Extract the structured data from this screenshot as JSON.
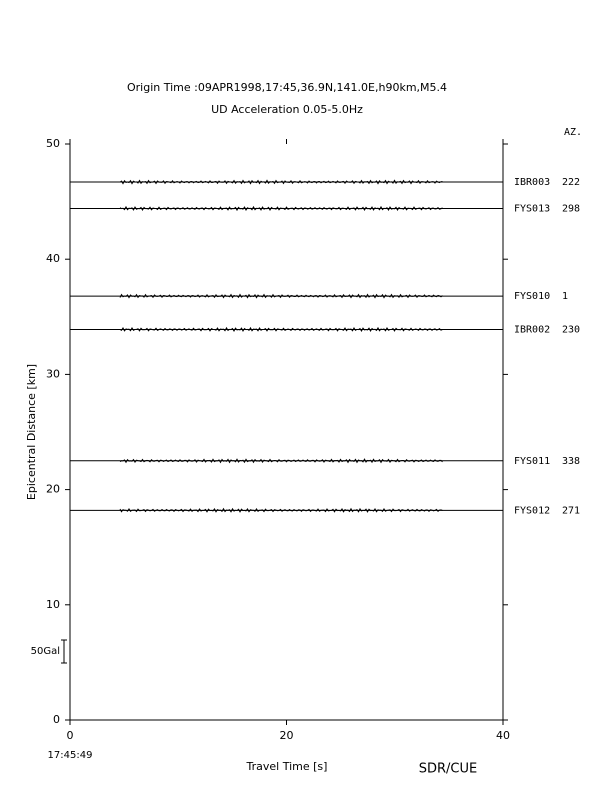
{
  "chart_data": {
    "type": "record-section",
    "title": "Origin Time :09APR1998,17:45,36.9N,141.0E,h90km,M5.4",
    "subtitle": "UD Acceleration 0.05-5.0Hz",
    "x_label": "Travel Time [s]",
    "y_label": "Epicentral Distance [km]",
    "start_time": "17:45:49",
    "azimuth_header": "AZ.",
    "credit": "SDR/CUE",
    "scale_bar": {
      "value": 50,
      "label": "50Gal"
    },
    "xlim": [
      0,
      40
    ],
    "xticks": [
      0,
      20,
      40
    ],
    "ylim": [
      0,
      50
    ],
    "yticks": [
      0,
      10,
      20,
      30,
      40,
      50
    ],
    "color": "#000000",
    "traces": [
      {
        "name": "IBR003",
        "azimuth": 222,
        "distance": 46.7
      },
      {
        "name": "FYS013",
        "azimuth": 298,
        "distance": 44.4
      },
      {
        "name": "FYS010",
        "azimuth": 1,
        "distance": 36.8
      },
      {
        "name": "IBR002",
        "azimuth": 230,
        "distance": 33.9
      },
      {
        "name": "FYS011",
        "azimuth": 338,
        "distance": 22.5
      },
      {
        "name": "FYS012",
        "azimuth": 271,
        "distance": 18.2
      }
    ]
  }
}
